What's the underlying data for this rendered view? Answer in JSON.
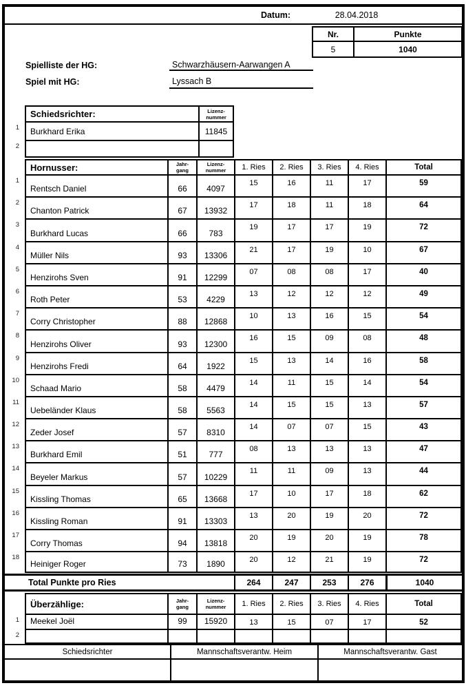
{
  "colors": {
    "line": "#000000",
    "background": "#ffffff"
  },
  "header": {
    "datum_label": "Datum:",
    "datum_value": "28.04.2018",
    "nr_label": "Nr.",
    "punkte_label": "Punkte",
    "nr_value": "5",
    "punkte_value": "1040",
    "spielliste_label": "Spielliste der HG:",
    "spielliste_value": "Schwarzhäusern-Aarwangen A",
    "spielmit_label": "Spiel mit HG:",
    "spielmit_value": "Lyssach B"
  },
  "columns": {
    "jahrgang": "Jahr-\ngang",
    "lizenz": "Lizenz-\nnummer",
    "ries": [
      "1. Ries",
      "2. Ries",
      "3. Ries",
      "4. Ries"
    ],
    "total": "Total"
  },
  "schiedsrichter": {
    "title": "Schiedsrichter:",
    "rows": [
      {
        "nr": "1",
        "name": "Burkhard Erika",
        "lizenz": "11845"
      },
      {
        "nr": "2",
        "name": "",
        "lizenz": ""
      }
    ]
  },
  "hornusser": {
    "title": "Hornusser:",
    "players": [
      {
        "nr": "1",
        "name": "Rentsch Daniel",
        "jahrgang": "66",
        "lizenz": "4097",
        "ries": [
          "15",
          "16",
          "11",
          "17"
        ],
        "total": "59"
      },
      {
        "nr": "2",
        "name": "Chanton Patrick",
        "jahrgang": "67",
        "lizenz": "13932",
        "ries": [
          "17",
          "18",
          "11",
          "18"
        ],
        "total": "64"
      },
      {
        "nr": "3",
        "name": "Burkhard Lucas",
        "jahrgang": "66",
        "lizenz": "783",
        "ries": [
          "19",
          "17",
          "17",
          "19"
        ],
        "total": "72"
      },
      {
        "nr": "4",
        "name": "Müller Nils",
        "jahrgang": "93",
        "lizenz": "13306",
        "ries": [
          "21",
          "17",
          "19",
          "10"
        ],
        "total": "67"
      },
      {
        "nr": "5",
        "name": "Henzirohs Sven",
        "jahrgang": "91",
        "lizenz": "12299",
        "ries": [
          "07",
          "08",
          "08",
          "17"
        ],
        "total": "40"
      },
      {
        "nr": "6",
        "name": "Roth Peter",
        "jahrgang": "53",
        "lizenz": "4229",
        "ries": [
          "13",
          "12",
          "12",
          "12"
        ],
        "total": "49"
      },
      {
        "nr": "7",
        "name": "Corry Christopher",
        "jahrgang": "88",
        "lizenz": "12868",
        "ries": [
          "10",
          "13",
          "16",
          "15"
        ],
        "total": "54"
      },
      {
        "nr": "8",
        "name": "Henzirohs Oliver",
        "jahrgang": "93",
        "lizenz": "12300",
        "ries": [
          "16",
          "15",
          "09",
          "08"
        ],
        "total": "48"
      },
      {
        "nr": "9",
        "name": "Henzirohs Fredi",
        "jahrgang": "64",
        "lizenz": "1922",
        "ries": [
          "15",
          "13",
          "14",
          "16"
        ],
        "total": "58"
      },
      {
        "nr": "10",
        "name": "Schaad Mario",
        "jahrgang": "58",
        "lizenz": "4479",
        "ries": [
          "14",
          "11",
          "15",
          "14"
        ],
        "total": "54"
      },
      {
        "nr": "11",
        "name": "Uebeländer Klaus",
        "jahrgang": "58",
        "lizenz": "5563",
        "ries": [
          "14",
          "15",
          "15",
          "13"
        ],
        "total": "57"
      },
      {
        "nr": "12",
        "name": "Zeder Josef",
        "jahrgang": "57",
        "lizenz": "8310",
        "ries": [
          "14",
          "07",
          "07",
          "15"
        ],
        "total": "43"
      },
      {
        "nr": "13",
        "name": "Burkhard Emil",
        "jahrgang": "51",
        "lizenz": "777",
        "ries": [
          "08",
          "13",
          "13",
          "13"
        ],
        "total": "47"
      },
      {
        "nr": "14",
        "name": "Beyeler Markus",
        "jahrgang": "57",
        "lizenz": "10229",
        "ries": [
          "11",
          "11",
          "09",
          "13"
        ],
        "total": "44"
      },
      {
        "nr": "15",
        "name": "Kissling Thomas",
        "jahrgang": "65",
        "lizenz": "13668",
        "ries": [
          "17",
          "10",
          "17",
          "18"
        ],
        "total": "62"
      },
      {
        "nr": "16",
        "name": "Kissling Roman",
        "jahrgang": "91",
        "lizenz": "13303",
        "ries": [
          "13",
          "20",
          "19",
          "20"
        ],
        "total": "72"
      },
      {
        "nr": "17",
        "name": "Corry Thomas",
        "jahrgang": "94",
        "lizenz": "13818",
        "ries": [
          "20",
          "19",
          "20",
          "19"
        ],
        "total": "78"
      },
      {
        "nr": "18",
        "name": "Heiniger Roger",
        "jahrgang": "73",
        "lizenz": "1890",
        "ries": [
          "20",
          "12",
          "21",
          "19"
        ],
        "total": "72"
      }
    ]
  },
  "total_row": {
    "label": "Total Punkte pro Ries",
    "values": [
      "264",
      "247",
      "253",
      "276"
    ],
    "total": "1040"
  },
  "ueberzaehlige": {
    "title": "Überzählige:",
    "players": [
      {
        "nr": "1",
        "name": "Meekel Joël",
        "jahrgang": "99",
        "lizenz": "15920",
        "ries": [
          "13",
          "15",
          "07",
          "17"
        ],
        "total": "52"
      },
      {
        "nr": "2",
        "name": "",
        "jahrgang": "",
        "lizenz": "",
        "ries": [
          "",
          "",
          "",
          ""
        ],
        "total": ""
      }
    ]
  },
  "footer": {
    "labels": [
      "Schiedsrichter",
      "Mannschaftsverantw. Heim",
      "Mannschaftsverantw. Gast"
    ]
  }
}
